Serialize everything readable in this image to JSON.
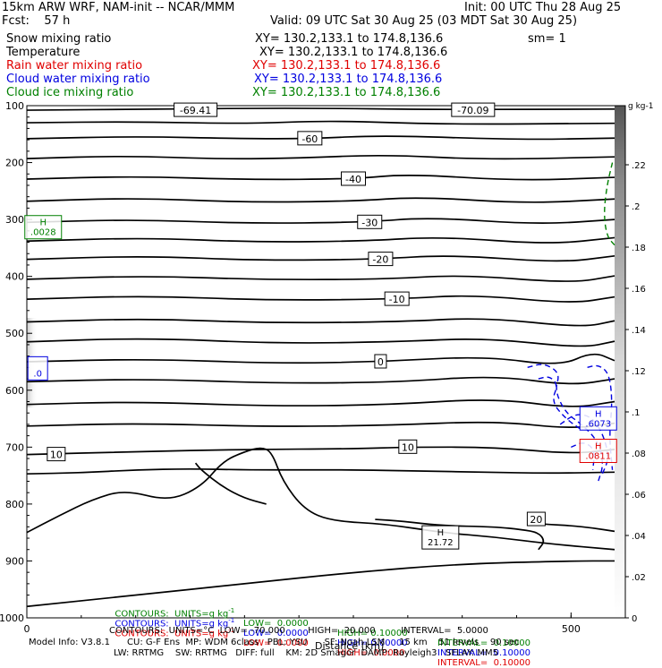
{
  "header": {
    "model": "15km ARW WRF, NAM-init -- NCAR/MMM",
    "init": "Init: 00 UTC Thu 28 Aug 25",
    "fcst": "Fcst:    57 h",
    "valid": "Valid: 09 UTC Sat 30 Aug 25 (03 MDT Sat 30 Aug 25)",
    "fields": [
      {
        "name": "Snow mixing ratio",
        "xy": "XY= 130.2,133.1 to 174.8,136.6",
        "extra": "sm= 1",
        "color": "#000000"
      },
      {
        "name": "Temperature",
        "xy": "XY= 130.2,133.1 to 174.8,136.6",
        "extra": "",
        "color": "#000000"
      },
      {
        "name": "Rain water mixing ratio",
        "xy": "XY= 130.2,133.1 to 174.8,136.6",
        "extra": "",
        "color": "#e00000"
      },
      {
        "name": "Cloud water mixing ratio",
        "xy": "XY= 130.2,133.1 to 174.8,136.6",
        "extra": "",
        "color": "#0000e0"
      },
      {
        "name": "Cloud ice mixing ratio",
        "xy": "XY= 130.2,133.1 to 174.8,136.6",
        "extra": "",
        "color": "#008000"
      }
    ]
  },
  "chart_data": {
    "type": "contour",
    "xlabel": "Distance (km)",
    "x_tick_labels": [
      "0",
      "500"
    ],
    "xlim": [
      0,
      540
    ],
    "y_tick_labels": [
      "100",
      "200",
      "300",
      "400",
      "500",
      "600",
      "700",
      "800",
      "900",
      "1000"
    ],
    "ylim": [
      100,
      1000
    ],
    "colorbar_unit": "g kg-1",
    "colorbar_ticks": [
      ".22",
      ".2",
      ".18",
      ".16",
      ".14",
      ".12",
      ".1",
      ".08",
      ".06",
      ".04",
      ".02",
      "0"
    ],
    "colorbar_range": [
      0,
      0.24
    ],
    "temperature_contour_labels": [
      {
        "value": "-69.41",
        "x": 155,
        "p": 108
      },
      {
        "value": "-70.09",
        "x": 410,
        "p": 108
      },
      {
        "value": "-60",
        "x": 260,
        "p": 158
      },
      {
        "value": "-40",
        "x": 300,
        "p": 229
      },
      {
        "value": "-30",
        "x": 315,
        "p": 305
      },
      {
        "value": "-20",
        "x": 325,
        "p": 370
      },
      {
        "value": "-10",
        "x": 340,
        "p": 440
      },
      {
        "value": "0",
        "x": 325,
        "p": 550
      },
      {
        "value": "10",
        "x": 27,
        "p": 713
      },
      {
        "value": "10",
        "x": 350,
        "p": 700
      },
      {
        "value": "20",
        "x": 468,
        "p": 827
      }
    ],
    "extrema_labels": [
      {
        "letter": "H",
        "value": ".0028",
        "x": 15,
        "p": 312,
        "color": "#008000"
      },
      {
        "letter": "H",
        "value": ".6073",
        "x": 525,
        "p": 648,
        "color": "#0000e0"
      },
      {
        "letter": "H",
        "value": ".0811",
        "x": 525,
        "p": 705,
        "color": "#e00000"
      },
      {
        "letter": "H",
        "value": "21.72",
        "x": 380,
        "p": 857,
        "color": "#000000"
      },
      {
        "letter": "",
        "value": ".0",
        "x": 10,
        "p": 560,
        "color": "#0000e0"
      }
    ]
  },
  "footer": {
    "contour_rows": [
      {
        "color": "#008000",
        "units": "CONTOURS:  UNITS=g kg",
        "low": "LOW=  0.0000",
        "high": "HIGH= 0.10000",
        "interval": "INTERVAL=  0.10000"
      },
      {
        "color": "#0000e0",
        "units": "CONTOURS:  UNITS=g kg",
        "low": "LOW=  0.0000",
        "high": "HIGH= 0.60000",
        "interval": "INTERVAL=  0.10000"
      },
      {
        "color": "#e00000",
        "units": "CONTOURS:  UNITS=g kg",
        "low": "LOW=  0.0000",
        "high": "HIGH=  0.0000",
        "interval": "INTERVAL=  0.10000"
      }
    ],
    "temp_row": "CONTOURS:  UNITS=°C  LOW= -70.000        HIGH=  20.000         INTERVAL=  5.0000",
    "model_info": "Model Info: V3.8.1      CU: G-F Ens  MP: WDM 6class   PBL: YSU      SF: Noah LSM     15 km    51 levels    90 sec",
    "model_info2": "LW: RRTMG    SW: RRTMG   DIFF: full    KM: 2D Smagor  DAMP: Rayleigh3   SFLAY: MM5"
  }
}
